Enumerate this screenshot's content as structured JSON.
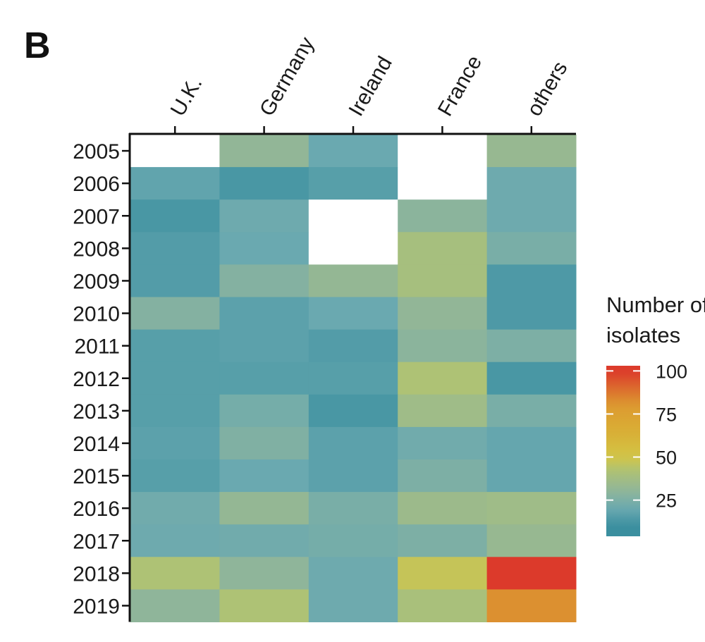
{
  "panel_label": "B",
  "chart_data": {
    "type": "heatmap",
    "title": "",
    "x_categories": [
      "U.K.",
      "Germany",
      "Ireland",
      "France",
      "others"
    ],
    "y_categories": [
      "2005",
      "2006",
      "2007",
      "2008",
      "2009",
      "2010",
      "2011",
      "2012",
      "2013",
      "2014",
      "2015",
      "2016",
      "2017",
      "2018",
      "2019"
    ],
    "values": [
      [
        null,
        31,
        20,
        null,
        33
      ],
      [
        18,
        13,
        16,
        null,
        21
      ],
      [
        13,
        21,
        null,
        29,
        21
      ],
      [
        15,
        20,
        null,
        39,
        24
      ],
      [
        15,
        27,
        32,
        39,
        14
      ],
      [
        27,
        17,
        20,
        31,
        14
      ],
      [
        16,
        17,
        15,
        29,
        25
      ],
      [
        16,
        16,
        16,
        42,
        13
      ],
      [
        16,
        23,
        13,
        36,
        24
      ],
      [
        17,
        26,
        17,
        22,
        19
      ],
      [
        16,
        20,
        17,
        25,
        19
      ],
      [
        22,
        32,
        24,
        35,
        36
      ],
      [
        21,
        22,
        23,
        25,
        33
      ],
      [
        42,
        30,
        21,
        47,
        100
      ],
      [
        30,
        42,
        21,
        40,
        82
      ]
    ],
    "missing_color": "#ffffff",
    "color_scale": {
      "domain": [
        4,
        103
      ],
      "stops": [
        {
          "value": 10,
          "color": "#3b8f9f"
        },
        {
          "value": 20,
          "color": "#6aa9b0"
        },
        {
          "value": 30,
          "color": "#8fb59a"
        },
        {
          "value": 42,
          "color": "#aec275"
        },
        {
          "value": 50,
          "color": "#d3c546"
        },
        {
          "value": 65,
          "color": "#d9ae35"
        },
        {
          "value": 80,
          "color": "#dc9a30"
        },
        {
          "value": 100,
          "color": "#dc3a2b"
        }
      ]
    },
    "legend": {
      "title_lines": [
        "Number of",
        "isolates"
      ],
      "ticks": [
        25,
        50,
        75,
        100
      ],
      "placement": "right"
    },
    "x_axis_position": "top"
  }
}
